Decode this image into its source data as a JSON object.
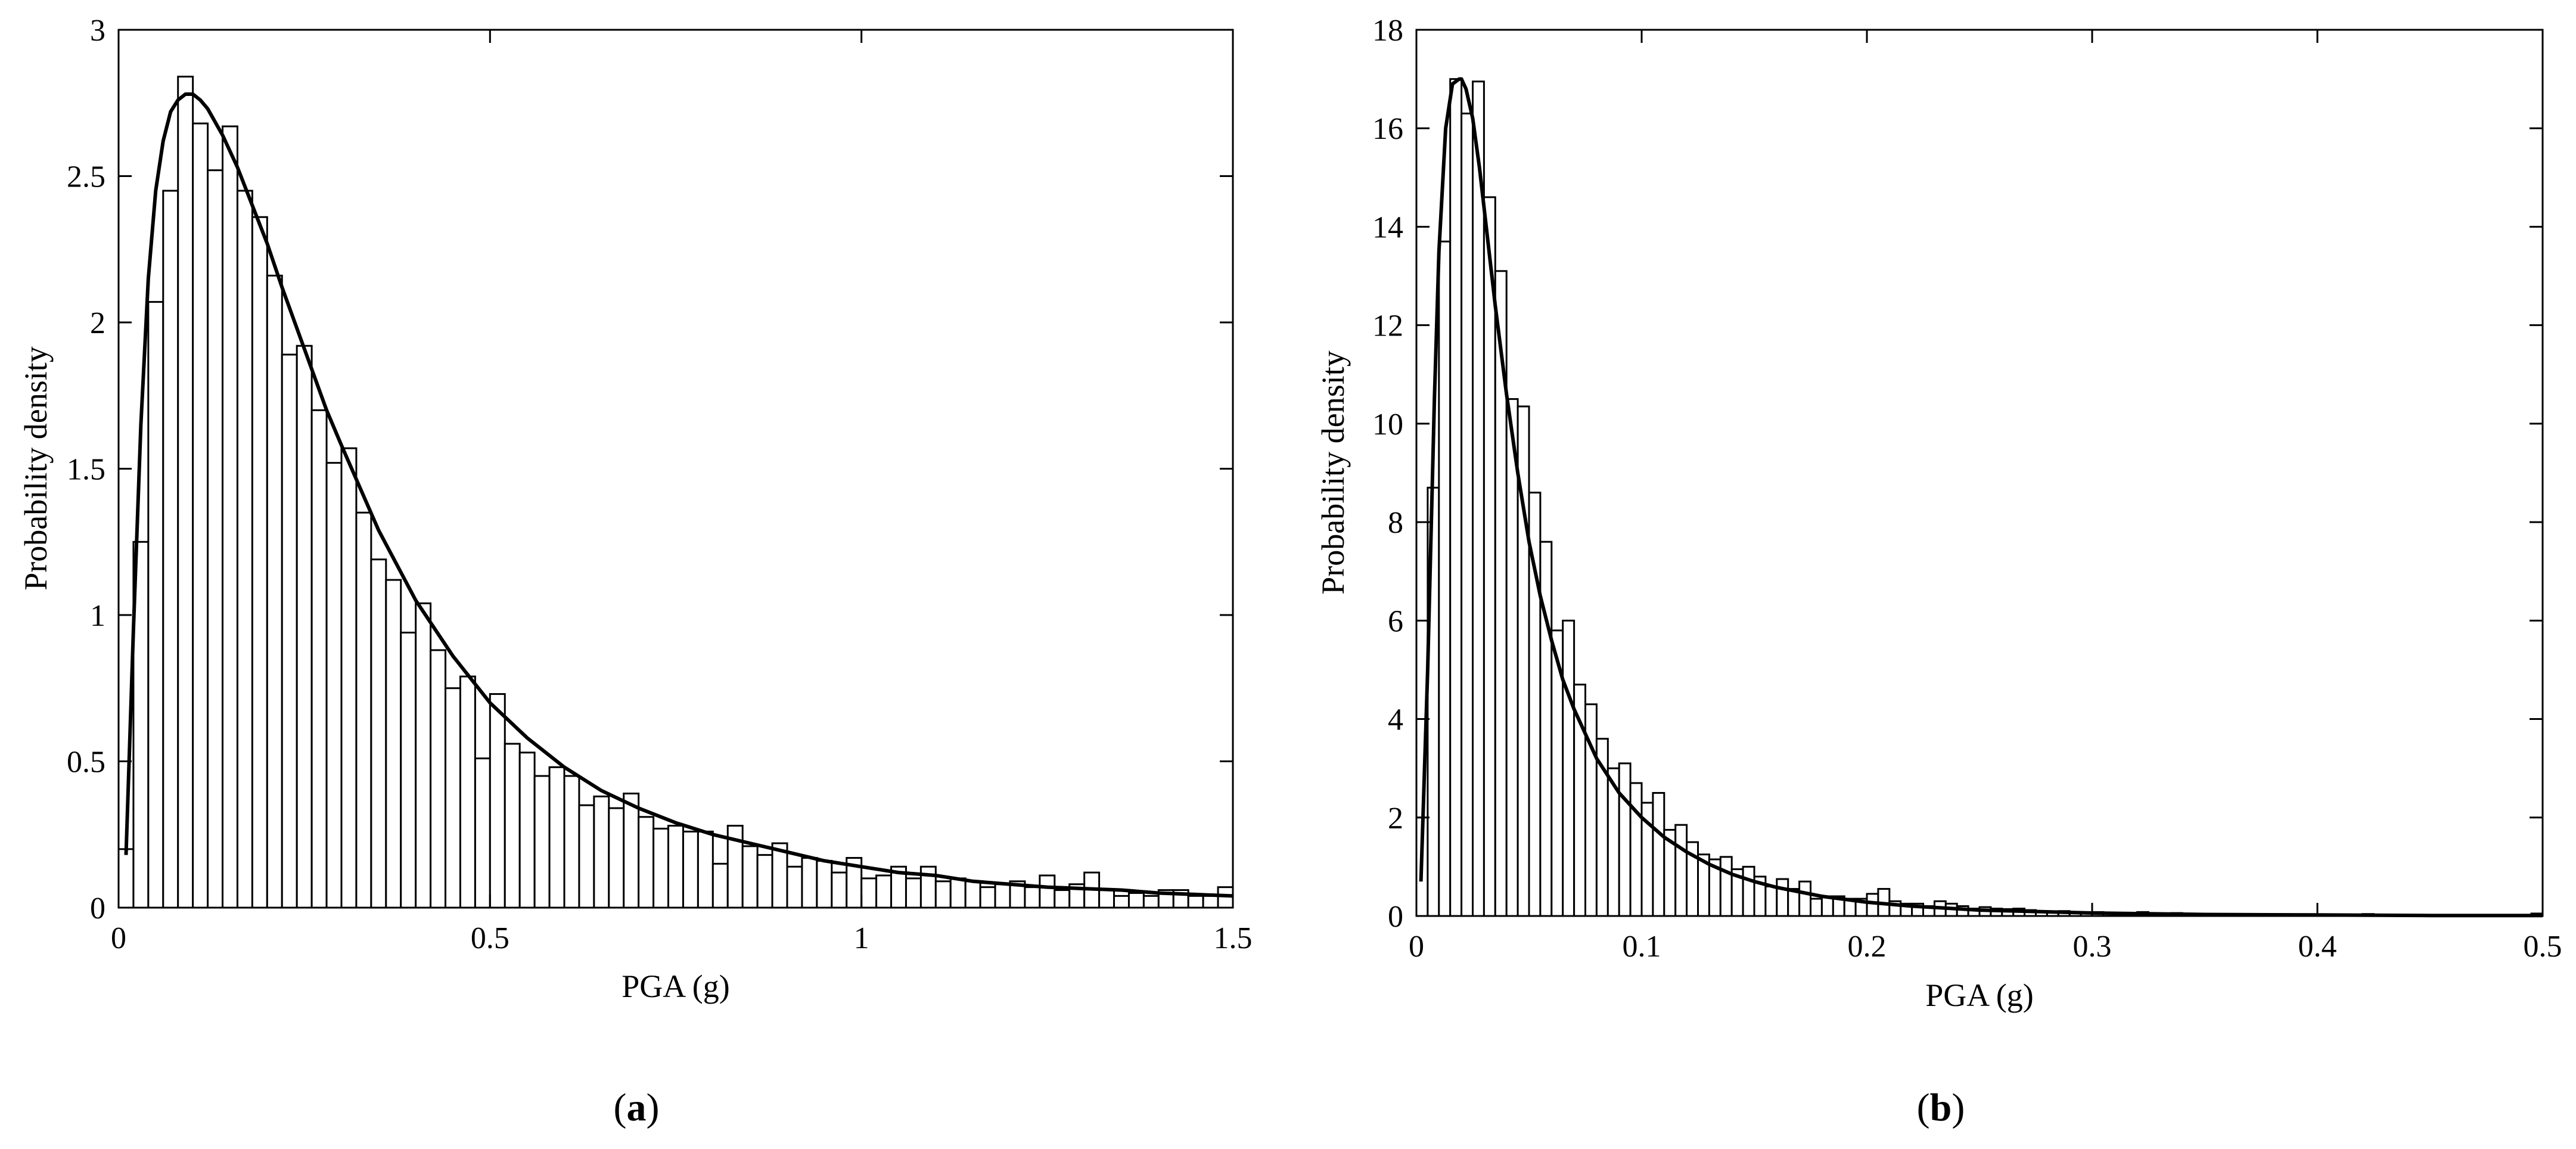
{
  "chart_data": [
    {
      "panel_label": "a",
      "type": "bar",
      "xlabel": "PGA (g)",
      "ylabel": "Probability density",
      "xlim": [
        0,
        1.5
      ],
      "ylim": [
        0,
        3
      ],
      "xticks": [
        0,
        0.5,
        1,
        1.5
      ],
      "xtick_labels": [
        "0",
        "0.5",
        "1",
        "1.5"
      ],
      "yticks": [
        0,
        0.5,
        1,
        1.5,
        2,
        2.5,
        3
      ],
      "ytick_labels": [
        "0",
        "0.5",
        "1",
        "1.5",
        "2",
        "2.5",
        "3"
      ],
      "grid": false,
      "bin_start": 0,
      "bin_width": 0.02,
      "values": [
        0.2,
        1.25,
        2.07,
        2.45,
        2.84,
        2.68,
        2.52,
        2.67,
        2.45,
        2.36,
        2.16,
        1.89,
        1.92,
        1.7,
        1.52,
        1.57,
        1.35,
        1.19,
        1.12,
        0.94,
        1.04,
        0.88,
        0.75,
        0.79,
        0.51,
        0.73,
        0.56,
        0.53,
        0.45,
        0.48,
        0.45,
        0.35,
        0.38,
        0.34,
        0.39,
        0.31,
        0.27,
        0.28,
        0.26,
        0.26,
        0.15,
        0.28,
        0.21,
        0.18,
        0.22,
        0.14,
        0.17,
        0.16,
        0.12,
        0.17,
        0.1,
        0.11,
        0.14,
        0.1,
        0.14,
        0.09,
        0.1,
        0.09,
        0.07,
        0.08,
        0.09,
        0.07,
        0.11,
        0.06,
        0.08,
        0.12,
        0.06,
        0.04,
        0.05,
        0.04,
        0.06,
        0.06,
        0.04,
        0.04,
        0.07
      ],
      "fit_curve": {
        "x": [
          0.01,
          0.02,
          0.03,
          0.04,
          0.05,
          0.06,
          0.07,
          0.08,
          0.09,
          0.1,
          0.11,
          0.12,
          0.14,
          0.16,
          0.18,
          0.2,
          0.22,
          0.25,
          0.28,
          0.3,
          0.35,
          0.4,
          0.45,
          0.5,
          0.55,
          0.6,
          0.65,
          0.7,
          0.75,
          0.8,
          0.85,
          0.9,
          0.95,
          1.0,
          1.05,
          1.1,
          1.15,
          1.2,
          1.25,
          1.3,
          1.35,
          1.4,
          1.45,
          1.5
        ],
        "y": [
          0.18,
          0.95,
          1.65,
          2.15,
          2.45,
          2.62,
          2.72,
          2.76,
          2.78,
          2.78,
          2.76,
          2.73,
          2.64,
          2.53,
          2.4,
          2.27,
          2.12,
          1.91,
          1.7,
          1.58,
          1.29,
          1.05,
          0.86,
          0.7,
          0.58,
          0.48,
          0.4,
          0.34,
          0.29,
          0.25,
          0.22,
          0.19,
          0.16,
          0.14,
          0.12,
          0.11,
          0.09,
          0.08,
          0.07,
          0.065,
          0.06,
          0.05,
          0.045,
          0.04
        ]
      }
    },
    {
      "panel_label": "b",
      "type": "bar",
      "xlabel": "PGA (g)",
      "ylabel": "Probability density",
      "xlim": [
        0,
        0.5
      ],
      "ylim": [
        0,
        18
      ],
      "xticks": [
        0,
        0.1,
        0.2,
        0.3,
        0.4,
        0.5
      ],
      "xtick_labels": [
        "0",
        "0.1",
        "0.2",
        "0.3",
        "0.4",
        "0.5"
      ],
      "yticks": [
        0,
        2,
        4,
        6,
        8,
        10,
        12,
        14,
        16,
        18
      ],
      "ytick_labels": [
        "0",
        "2",
        "4",
        "6",
        "8",
        "10",
        "12",
        "14",
        "16",
        "18"
      ],
      "grid": false,
      "bin_start": 0,
      "bin_width": 0.005,
      "values": [
        2.0,
        8.7,
        13.7,
        17.0,
        16.3,
        16.95,
        14.6,
        13.1,
        10.5,
        10.35,
        8.6,
        7.6,
        5.8,
        6.0,
        4.7,
        4.3,
        3.6,
        3.0,
        3.1,
        2.7,
        2.3,
        2.5,
        1.75,
        1.85,
        1.5,
        1.25,
        1.15,
        1.2,
        0.95,
        1.0,
        0.8,
        0.6,
        0.75,
        0.55,
        0.7,
        0.35,
        0.4,
        0.4,
        0.35,
        0.35,
        0.45,
        0.55,
        0.3,
        0.25,
        0.25,
        0.2,
        0.3,
        0.25,
        0.2,
        0.15,
        0.18,
        0.15,
        0.14,
        0.15,
        0.12,
        0.1,
        0.08,
        0.1,
        0.08,
        0.06,
        0.08,
        0.06,
        0.05,
        0.06,
        0.08,
        0.05,
        0.04,
        0.06,
        0.04,
        0.04,
        0.03,
        0.04,
        0.03,
        0.03,
        0.04,
        0.03,
        0.02,
        0.03,
        0.02,
        0.02,
        0.02,
        0.02,
        0.02,
        0.02,
        0.04,
        0.02,
        0.01,
        0.02,
        0.01,
        0.01,
        0.01,
        0.01,
        0.01,
        0.01,
        0.01,
        0.01,
        0.01,
        0.01,
        0.01,
        0.05
      ],
      "fit_curve": {
        "x": [
          0.002,
          0.005,
          0.008,
          0.01,
          0.013,
          0.016,
          0.019,
          0.02,
          0.022,
          0.025,
          0.028,
          0.03,
          0.035,
          0.04,
          0.045,
          0.05,
          0.055,
          0.06,
          0.065,
          0.07,
          0.08,
          0.09,
          0.1,
          0.11,
          0.12,
          0.13,
          0.14,
          0.15,
          0.16,
          0.18,
          0.2,
          0.22,
          0.25,
          0.3,
          0.35,
          0.4,
          0.45,
          0.5
        ],
        "y": [
          0.7,
          5.0,
          10.5,
          13.5,
          16.0,
          16.9,
          17.0,
          17.0,
          16.8,
          16.2,
          15.2,
          14.4,
          12.4,
          10.6,
          9.0,
          7.6,
          6.5,
          5.6,
          4.8,
          4.2,
          3.2,
          2.5,
          2.0,
          1.6,
          1.3,
          1.05,
          0.85,
          0.7,
          0.58,
          0.4,
          0.28,
          0.2,
          0.12,
          0.06,
          0.03,
          0.02,
          0.01,
          0.01
        ]
      }
    }
  ],
  "panels": [
    {
      "label": "a",
      "open": "(",
      "close": ")"
    },
    {
      "label": "b",
      "open": "(",
      "close": ")"
    }
  ]
}
